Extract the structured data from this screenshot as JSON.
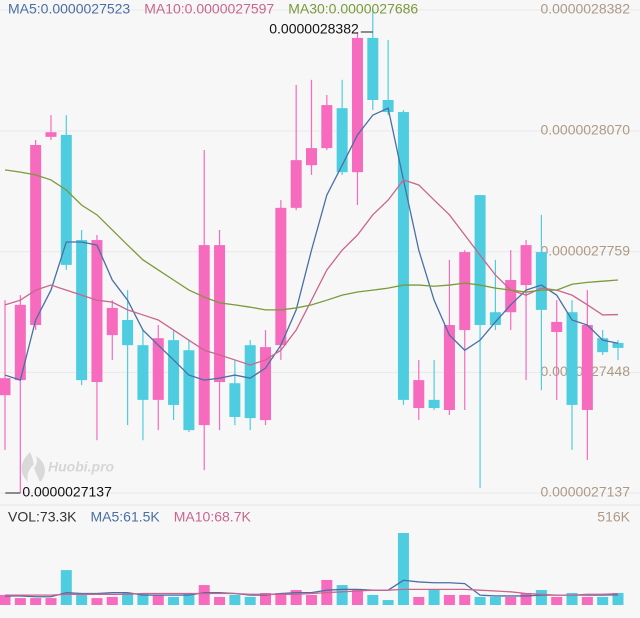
{
  "chart_data": [
    {
      "type": "candlestick",
      "up_color": "#f66bbd",
      "down_color": "#4fcde0",
      "watermark": "Huobi.pro",
      "candles": {
        "open": [
          2.7389e-06,
          2.7428e-06,
          2.757e-06,
          2.8055e-06,
          2.806e-06,
          2.7789e-06,
          2.7423e-06,
          2.7544e-06,
          2.7583e-06,
          2.7518e-06,
          2.7377e-06,
          2.7531e-06,
          2.7505e-06,
          2.7312e-06,
          2.7423e-06,
          2.742e-06,
          2.7518e-06,
          2.7325e-06,
          2.7518e-06,
          2.7872e-06,
          2.7982e-06,
          2.8026e-06,
          2.8129e-06,
          2.7964e-06,
          2.831e-06,
          2.815e-06,
          2.8119e-06,
          2.7356e-06,
          2.7377e-06,
          2.7351e-06,
          2.7557e-06,
          2.7905e-06,
          2.7603e-06,
          2.7603e-06,
          2.7673e-06,
          2.7758e-06,
          2.7552e-06,
          2.7603e-06,
          2.7351e-06,
          2.7536e-06,
          2.7524e-06
        ],
        "high": [
          2.7634e-06,
          2.7647e-06,
          2.8047e-06,
          2.8111e-06,
          2.8111e-06,
          2.7815e-06,
          2.7802e-06,
          2.7634e-06,
          2.766e-06,
          2.7557e-06,
          2.757e-06,
          2.7557e-06,
          2.7531e-06,
          2.8021e-06,
          2.7815e-06,
          2.748e-06,
          2.7531e-06,
          2.7557e-06,
          2.7892e-06,
          2.8189e-06,
          2.8202e-06,
          2.8163e-06,
          2.8202e-06,
          2.8325e-06,
          2.8382e-06,
          2.8305e-06,
          2.8124e-06,
          2.748e-06,
          2.748e-06,
          2.7738e-06,
          2.7763e-06,
          2.7905e-06,
          2.7738e-06,
          2.7763e-06,
          2.7789e-06,
          2.7854e-06,
          2.7634e-06,
          2.7634e-06,
          2.766e-06,
          2.7557e-06,
          2.7531e-06
        ],
        "low": [
          2.7248e-06,
          2.7137e-06,
          2.7557e-06,
          2.8047e-06,
          2.7712e-06,
          2.7415e-06,
          2.7273e-06,
          2.748e-06,
          2.7312e-06,
          2.7273e-06,
          2.7299e-06,
          2.7325e-06,
          2.7294e-06,
          2.7196e-06,
          2.7299e-06,
          2.7312e-06,
          2.7299e-06,
          2.7312e-06,
          2.748e-06,
          2.7866e-06,
          2.7957e-06,
          2.8021e-06,
          2.7957e-06,
          2.7879e-06,
          2.8124e-06,
          2.8111e-06,
          2.7364e-06,
          2.7325e-06,
          2.7351e-06,
          2.7338e-06,
          2.7351e-06,
          2.715e-06,
          2.7557e-06,
          2.7557e-06,
          2.7428e-06,
          2.7402e-06,
          2.7377e-06,
          2.7248e-06,
          2.7222e-06,
          2.7493e-06,
          2.748e-06
        ],
        "close": [
          2.7433e-06,
          2.7622e-06,
          2.8034e-06,
          2.8067e-06,
          2.7725e-06,
          2.7428e-06,
          2.7789e-06,
          2.7614e-06,
          2.7518e-06,
          2.7377e-06,
          2.7536e-06,
          2.7364e-06,
          2.7299e-06,
          2.7776e-06,
          2.7776e-06,
          2.7333e-06,
          2.733e-06,
          2.7513e-06,
          2.7872e-06,
          2.7995e-06,
          2.8026e-06,
          2.8137e-06,
          2.7964e-06,
          2.831e-06,
          2.815e-06,
          2.8119e-06,
          2.7377e-06,
          2.7428e-06,
          2.7356e-06,
          2.757e-06,
          2.7758e-06,
          2.757e-06,
          2.757e-06,
          2.7686e-06,
          2.7776e-06,
          2.7609e-06,
          2.7578e-06,
          2.7364e-06,
          2.757e-06,
          2.75e-06,
          2.7511e-06
        ]
      },
      "high_label": "chart_data.0.candles.high.24",
      "low_label": "chart_data.0.candles.low.1",
      "series": [
        {
          "name": "MA5:0.0000027523",
          "color": "#4a6fa5",
          "values": [
            2.7441e-06,
            2.7428e-06,
            2.7583e-06,
            2.766e-06,
            2.7784e-06,
            2.7784e-06,
            2.7776e-06,
            2.7686e-06,
            2.7634e-06,
            2.7557e-06,
            2.7518e-06,
            2.748e-06,
            2.7441e-06,
            2.7428e-06,
            2.7433e-06,
            2.7441e-06,
            2.7433e-06,
            2.7459e-06,
            2.7518e-06,
            2.7609e-06,
            2.7763e-06,
            2.7905e-06,
            2.7982e-06,
            2.806e-06,
            2.8111e-06,
            2.8129e-06,
            2.7944e-06,
            2.7763e-06,
            2.7634e-06,
            2.7544e-06,
            2.7505e-06,
            2.7531e-06,
            2.7578e-06,
            2.7622e-06,
            2.766e-06,
            2.7673e-06,
            2.7647e-06,
            2.7583e-06,
            2.757e-06,
            2.7531e-06,
            2.7523e-06
          ]
        },
        {
          "name": "MA10:0.0000027597",
          "color": "#c9668e",
          "values": [
            2.7622e-06,
            2.7634e-06,
            2.766e-06,
            2.7673e-06,
            2.766e-06,
            2.7647e-06,
            2.7634e-06,
            2.7629e-06,
            2.7609e-06,
            2.7596e-06,
            2.7583e-06,
            2.7557e-06,
            2.7531e-06,
            2.7505e-06,
            2.7493e-06,
            2.748e-06,
            2.7467e-06,
            2.748e-06,
            2.7505e-06,
            2.7557e-06,
            2.7634e-06,
            2.7712e-06,
            2.7763e-06,
            2.7802e-06,
            2.7854e-06,
            2.7892e-06,
            2.7944e-06,
            2.7931e-06,
            2.7892e-06,
            2.7854e-06,
            2.7802e-06,
            2.775e-06,
            2.7699e-06,
            2.766e-06,
            2.7647e-06,
            2.7665e-06,
            2.766e-06,
            2.7647e-06,
            2.7622e-06,
            2.7596e-06,
            2.7597e-06
          ]
        },
        {
          "name": "MA30:0.0000027686",
          "color": "#7a9a3a",
          "values": [
            2.797e-06,
            2.7964e-06,
            2.7957e-06,
            2.7944e-06,
            2.7918e-06,
            2.7879e-06,
            2.7854e-06,
            2.7815e-06,
            2.7776e-06,
            2.7738e-06,
            2.7712e-06,
            2.7686e-06,
            2.766e-06,
            2.7642e-06,
            2.7627e-06,
            2.7622e-06,
            2.7616e-06,
            2.7609e-06,
            2.7609e-06,
            2.7614e-06,
            2.7622e-06,
            2.7634e-06,
            2.7647e-06,
            2.7655e-06,
            2.766e-06,
            2.7665e-06,
            2.7673e-06,
            2.7673e-06,
            2.767e-06,
            2.7673e-06,
            2.7678e-06,
            2.7673e-06,
            2.7665e-06,
            2.766e-06,
            2.7655e-06,
            2.766e-06,
            2.766e-06,
            2.7675e-06,
            2.768e-06,
            2.7683e-06,
            2.7686e-06
          ]
        }
      ],
      "ylim": [
        2.7137e-06,
        2.8382e-06
      ],
      "yticks": [
        2.7137e-06,
        2.7448e-06,
        2.7759e-06,
        {
          "value": 2.807e-06,
          "label": "0.0000028070"
        },
        2.8382e-06
      ],
      "grid": true
    },
    {
      "type": "bar",
      "name": "VOL:73.3K",
      "values": [
        61000,
        42000,
        42000,
        42000,
        212000,
        61000,
        42000,
        49000,
        73000,
        73000,
        61000,
        49000,
        73000,
        121000,
        49000,
        61000,
        49000,
        73000,
        73000,
        91000,
        61000,
        152000,
        121000,
        91000,
        61000,
        30000,
        437000,
        49000,
        91000,
        61000,
        61000,
        49000,
        49000,
        49000,
        73000,
        91000,
        49000,
        73000,
        49000,
        49000,
        73300
      ],
      "series": [
        {
          "name": "MA5:61.5K",
          "color": "#4a6fa5",
          "values": [
            55000,
            55000,
            50000,
            50000,
            75000,
            70000,
            70000,
            75000,
            75000,
            60000,
            60000,
            60000,
            60000,
            75000,
            75000,
            70000,
            60000,
            60000,
            70000,
            75000,
            75000,
            90000,
            95000,
            95000,
            90000,
            90000,
            150000,
            140000,
            135000,
            135000,
            130000,
            60000,
            55000,
            55000,
            55000,
            60000,
            60000,
            60000,
            60000,
            60000,
            61500
          ]
        },
        {
          "name": "MA10:68.7K",
          "color": "#c9668e",
          "values": [
            60000,
            60000,
            60000,
            60000,
            65000,
            65000,
            65000,
            65000,
            65000,
            70000,
            70000,
            70000,
            70000,
            70000,
            70000,
            70000,
            65000,
            65000,
            65000,
            65000,
            70000,
            75000,
            80000,
            85000,
            90000,
            90000,
            95000,
            95000,
            95000,
            95000,
            95000,
            90000,
            85000,
            80000,
            70000,
            65000,
            60000,
            60000,
            65000,
            65000,
            68700
          ]
        }
      ],
      "ylim": [
        0,
        516000
      ],
      "yticks": [
        {
          "value": 516000,
          "label": "516K"
        }
      ]
    }
  ]
}
